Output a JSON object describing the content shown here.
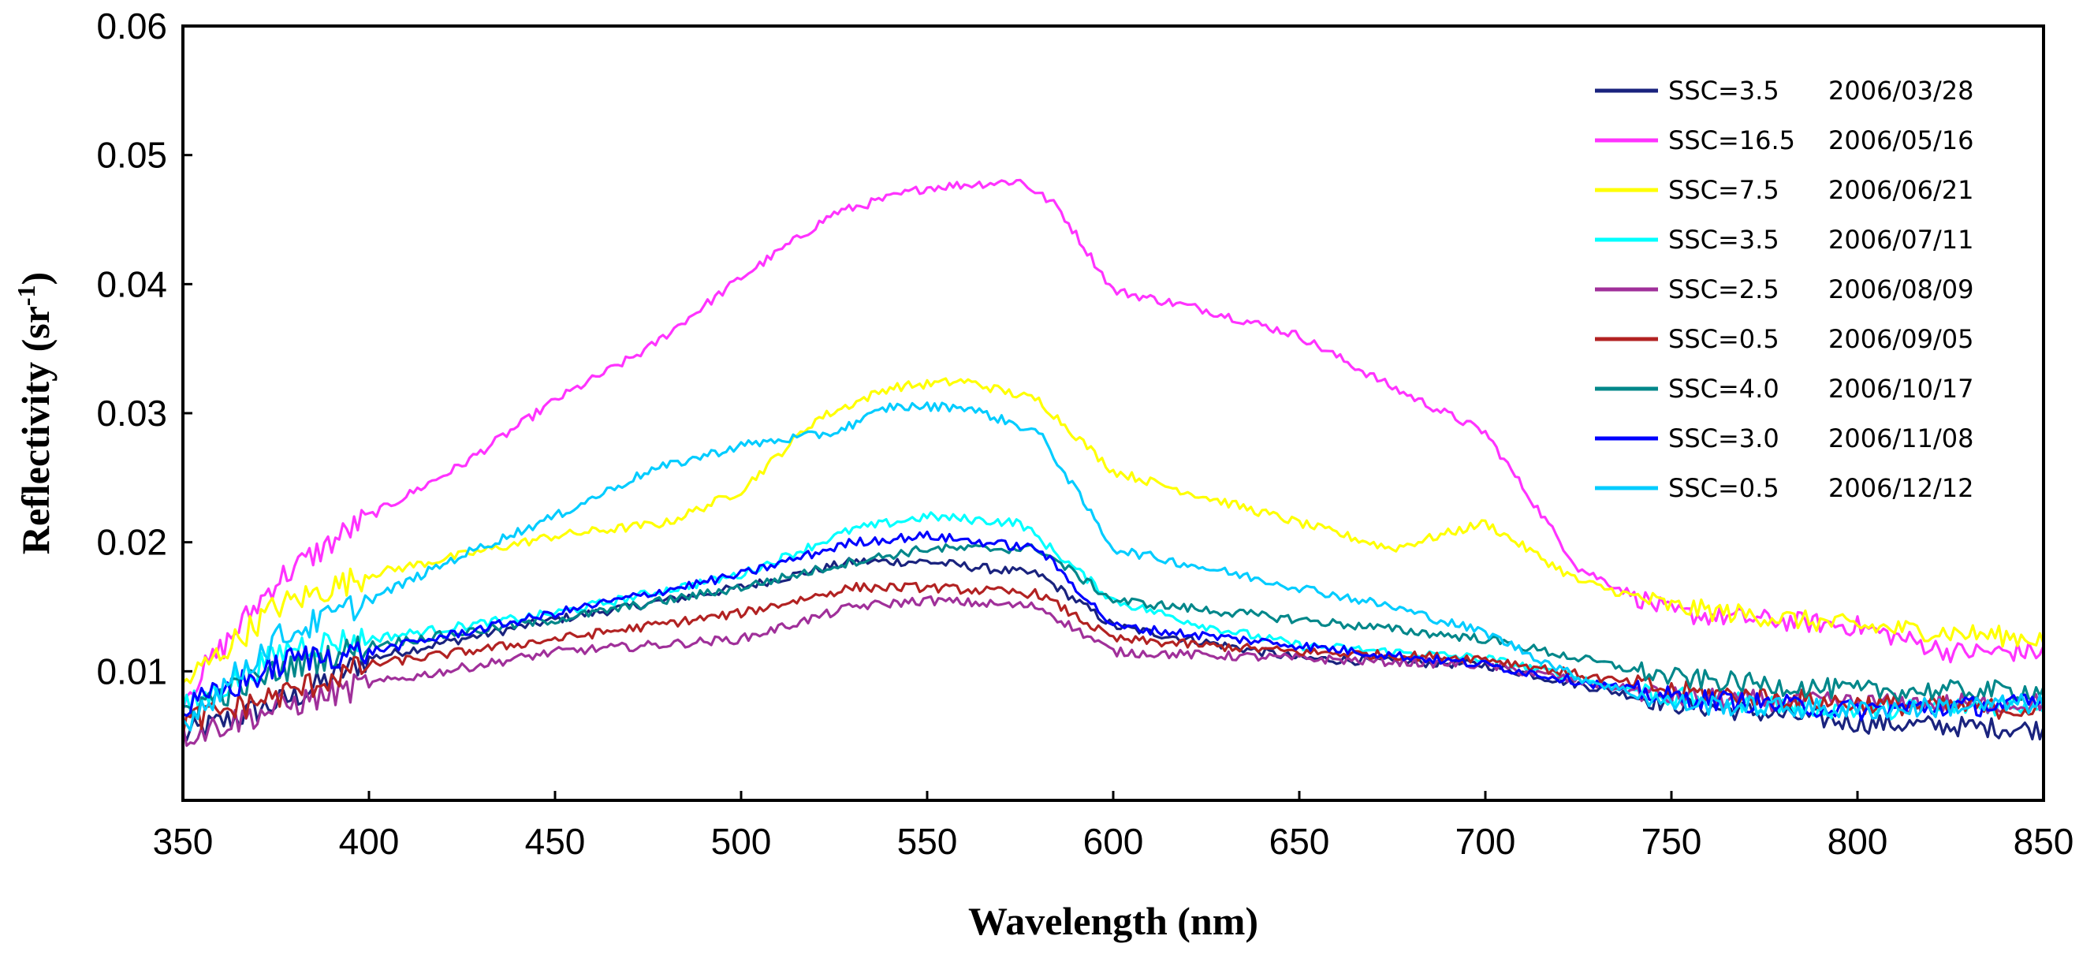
{
  "chart_data": {
    "type": "line",
    "xlabel": "Wavelength (nm)",
    "ylabel": "Reflectivity (sr",
    "ylabel_sup": "-1",
    "ylabel_close": ")",
    "xlim": [
      350,
      850
    ],
    "ylim": [
      0,
      0.06
    ],
    "xticks": [
      350,
      400,
      450,
      500,
      550,
      600,
      650,
      700,
      750,
      800,
      850
    ],
    "xtick_labels": [
      "350",
      "400",
      "450",
      "500",
      "550",
      "600",
      "650",
      "700",
      "750",
      "800",
      "850"
    ],
    "yticks": [
      0.01,
      0.02,
      0.03,
      0.04,
      0.05,
      0.06
    ],
    "ytick_labels": [
      "0.01",
      "0.02",
      "0.03",
      "0.04",
      "0.05",
      "0.06"
    ],
    "grid": false,
    "legend_position": "top-right",
    "series": [
      {
        "name": "SSC=3.5",
        "date": "2006/03/28",
        "color": "#1a237e",
        "x": [
          350,
          380,
          400,
          450,
          500,
          530,
          550,
          580,
          600,
          650,
          700,
          750,
          800,
          850
        ],
        "y": [
          0.005,
          0.008,
          0.011,
          0.014,
          0.0165,
          0.0185,
          0.0185,
          0.0175,
          0.0135,
          0.011,
          0.0105,
          0.0075,
          0.006,
          0.0055
        ]
      },
      {
        "name": "SSC=16.5",
        "date": "2006/05/16",
        "color": "#ff33ff",
        "x": [
          350,
          375,
          400,
          425,
          450,
          475,
          500,
          525,
          550,
          575,
          585,
          600,
          625,
          650,
          675,
          700,
          725,
          750,
          775,
          800,
          825,
          850
        ],
        "y": [
          0.008,
          0.017,
          0.022,
          0.026,
          0.031,
          0.035,
          0.0405,
          0.0455,
          0.0475,
          0.048,
          0.046,
          0.0395,
          0.038,
          0.036,
          0.032,
          0.0285,
          0.018,
          0.0145,
          0.014,
          0.0135,
          0.0115,
          0.0115
        ]
      },
      {
        "name": "SSC=7.5",
        "date": "2006/06/21",
        "color": "#ffff00",
        "x": [
          350,
          375,
          400,
          450,
          480,
          500,
          520,
          540,
          560,
          580,
          600,
          625,
          650,
          675,
          700,
          725,
          750,
          800,
          850
        ],
        "y": [
          0.009,
          0.015,
          0.0175,
          0.0205,
          0.0215,
          0.024,
          0.0295,
          0.032,
          0.0325,
          0.031,
          0.0255,
          0.0235,
          0.0215,
          0.0195,
          0.0215,
          0.017,
          0.015,
          0.0135,
          0.0125
        ]
      },
      {
        "name": "SSC=3.5",
        "date": "2006/07/11",
        "color": "#00ffff",
        "x": [
          350,
          380,
          400,
          450,
          500,
          530,
          550,
          575,
          600,
          625,
          650,
          700,
          750,
          800,
          850
        ],
        "y": [
          0.007,
          0.012,
          0.0125,
          0.0145,
          0.0175,
          0.021,
          0.022,
          0.0215,
          0.0155,
          0.0135,
          0.012,
          0.011,
          0.008,
          0.007,
          0.0075
        ]
      },
      {
        "name": "SSC=2.5",
        "date": "2006/08/09",
        "color": "#a0309a",
        "x": [
          350,
          380,
          400,
          450,
          500,
          530,
          550,
          580,
          600,
          650,
          700,
          750,
          800,
          850
        ],
        "y": [
          0.005,
          0.0075,
          0.009,
          0.0115,
          0.0125,
          0.015,
          0.0155,
          0.015,
          0.0115,
          0.011,
          0.0105,
          0.008,
          0.0075,
          0.0075
        ]
      },
      {
        "name": "SSC=0.5",
        "date": "2006/09/05",
        "color": "#b22222",
        "x": [
          350,
          380,
          400,
          450,
          500,
          530,
          550,
          580,
          600,
          650,
          700,
          750,
          800,
          850
        ],
        "y": [
          0.006,
          0.0085,
          0.0105,
          0.0125,
          0.0145,
          0.0165,
          0.0165,
          0.016,
          0.0125,
          0.0115,
          0.011,
          0.0085,
          0.0075,
          0.007
        ]
      },
      {
        "name": "SSC=4.0",
        "date": "2006/10/17",
        "color": "#00878a",
        "x": [
          350,
          380,
          400,
          450,
          500,
          530,
          550,
          580,
          600,
          650,
          700,
          750,
          800,
          850
        ],
        "y": [
          0.007,
          0.0105,
          0.012,
          0.014,
          0.0165,
          0.0185,
          0.0195,
          0.0195,
          0.0155,
          0.014,
          0.0125,
          0.0095,
          0.0085,
          0.0085
        ]
      },
      {
        "name": "SSC=3.0",
        "date": "2006/11/08",
        "color": "#0000ff",
        "x": [
          350,
          380,
          400,
          450,
          500,
          530,
          550,
          580,
          600,
          650,
          700,
          750,
          800,
          850
        ],
        "y": [
          0.007,
          0.011,
          0.0115,
          0.0145,
          0.0175,
          0.02,
          0.0205,
          0.0195,
          0.0135,
          0.012,
          0.0105,
          0.008,
          0.007,
          0.0075
        ]
      },
      {
        "name": "SSC=0.5",
        "date": "2006/12/12",
        "color": "#00ccff",
        "x": [
          350,
          375,
          400,
          425,
          450,
          475,
          500,
          525,
          540,
          560,
          580,
          600,
          625,
          650,
          675,
          700,
          725,
          750,
          800,
          850
        ],
        "y": [
          0.006,
          0.0125,
          0.0155,
          0.019,
          0.022,
          0.0255,
          0.0275,
          0.0285,
          0.0305,
          0.0305,
          0.0285,
          0.0195,
          0.018,
          0.0165,
          0.015,
          0.013,
          0.0095,
          0.0075,
          0.007,
          0.0075
        ]
      }
    ]
  }
}
